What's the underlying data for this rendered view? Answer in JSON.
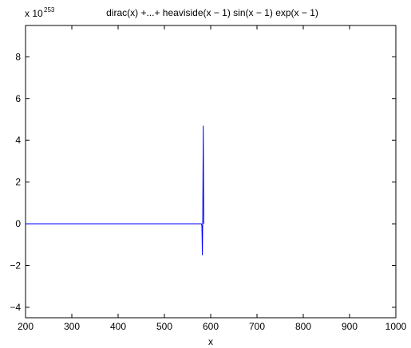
{
  "chart_data": {
    "type": "line",
    "title": "dirac(x) +...+ heaviside(x − 1) sin(x − 1) exp(x − 1)",
    "xlabel": "x",
    "ylabel": "",
    "scale_label": {
      "base": "x 10",
      "exponent": "253"
    },
    "xlim": [
      200,
      1000
    ],
    "ylim": [
      -4.5,
      9.5
    ],
    "xticks": [
      200,
      300,
      400,
      500,
      600,
      700,
      800,
      900,
      1000
    ],
    "yticks": [
      -4,
      -2,
      0,
      2,
      4,
      6,
      8
    ],
    "grid": false,
    "line_color": "#0000ff",
    "series": [
      {
        "x": [
          200,
          300,
          400,
          500,
          580,
          581,
          582,
          583,
          584,
          585
        ],
        "y": [
          0,
          0,
          0,
          0,
          0,
          -0.1,
          -1.5,
          0.6,
          4.7,
          0
        ]
      }
    ]
  }
}
